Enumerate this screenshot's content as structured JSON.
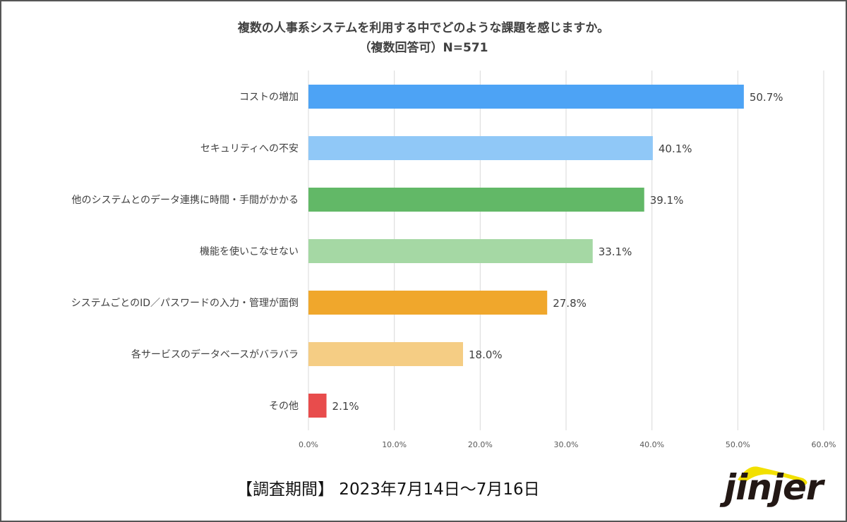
{
  "chart_data": {
    "type": "bar",
    "orientation": "horizontal",
    "title": "複数の人事系システムを利用する中でどのような課題を感じますか。",
    "subtitle": "（複数回答可）N=571",
    "categories": [
      "コストの増加",
      "セキュリティへの不安",
      "他のシステムとのデータ連携に時間・手間がかかる",
      "機能を使いこなせない",
      "システムごとのID／パスワードの入力・管理が面倒",
      "各サービスのデータベースがバラバラ",
      "その他"
    ],
    "values": [
      50.7,
      40.1,
      39.1,
      33.1,
      27.8,
      18.0,
      2.1
    ],
    "value_labels": [
      "50.7%",
      "40.1%",
      "39.1%",
      "33.1%",
      "27.8%",
      "18.0%",
      "2.1%"
    ],
    "colors": [
      "#4da3f5",
      "#90c8f7",
      "#62b867",
      "#a5d8a4",
      "#f0a72c",
      "#f5cd84",
      "#e84c4c"
    ],
    "xlim": [
      0,
      60
    ],
    "xticks": [
      "0.0%",
      "10.0%",
      "20.0%",
      "30.0%",
      "40.0%",
      "50.0%",
      "60.0%"
    ],
    "grid": true,
    "xlabel": "",
    "ylabel": ""
  },
  "footer": "【調査期間】 2023年7月14日～7月16日",
  "logo": "jinjer"
}
